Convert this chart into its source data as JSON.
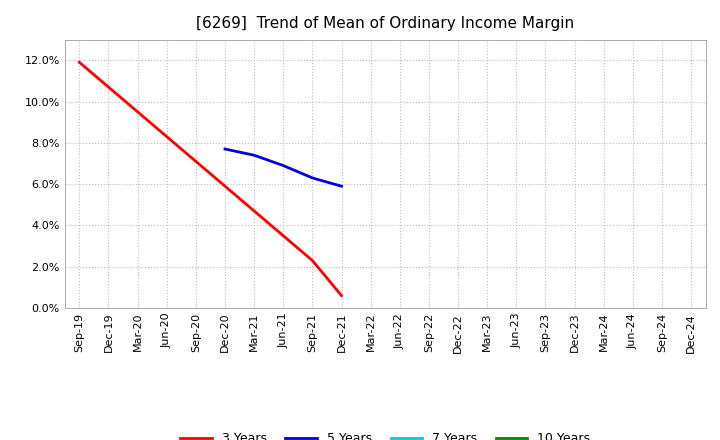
{
  "title": "[6269]  Trend of Mean of Ordinary Income Margin",
  "ylim": [
    0.0,
    0.13
  ],
  "yticks": [
    0.0,
    0.02,
    0.04,
    0.06,
    0.08,
    0.1,
    0.12
  ],
  "xtick_labels": [
    "Sep-19",
    "Dec-19",
    "Mar-20",
    "Jun-20",
    "Sep-20",
    "Dec-20",
    "Mar-21",
    "Jun-21",
    "Sep-21",
    "Dec-21",
    "Mar-22",
    "Jun-22",
    "Sep-22",
    "Dec-22",
    "Mar-23",
    "Jun-23",
    "Sep-23",
    "Dec-23",
    "Mar-24",
    "Jun-24",
    "Sep-24",
    "Dec-24"
  ],
  "series_3y": {
    "x": [
      "Sep-19",
      "Dec-19",
      "Mar-20",
      "Jun-20",
      "Sep-20",
      "Dec-20",
      "Mar-21",
      "Jun-21",
      "Sep-21",
      "Dec-21"
    ],
    "y": [
      0.119,
      0.107,
      0.095,
      0.083,
      0.071,
      0.059,
      0.047,
      0.035,
      0.023,
      0.006
    ],
    "color": "#ff0000",
    "label": "3 Years",
    "linewidth": 2.0
  },
  "series_5y": {
    "x": [
      "Dec-20",
      "Mar-21",
      "Jun-21",
      "Sep-21",
      "Dec-21"
    ],
    "y": [
      0.077,
      0.074,
      0.069,
      0.063,
      0.059
    ],
    "color": "#0000dd",
    "label": "5 Years",
    "linewidth": 2.0
  },
  "series_7y": {
    "x": [],
    "y": [],
    "color": "#00cccc",
    "label": "7 Years",
    "linewidth": 2.0
  },
  "series_10y": {
    "x": [],
    "y": [],
    "color": "#008800",
    "label": "10 Years",
    "linewidth": 2.0
  },
  "background_color": "#ffffff",
  "plot_bg_color": "#ffffff",
  "grid_color": "#bbbbbb",
  "title_fontsize": 11,
  "tick_fontsize": 8
}
